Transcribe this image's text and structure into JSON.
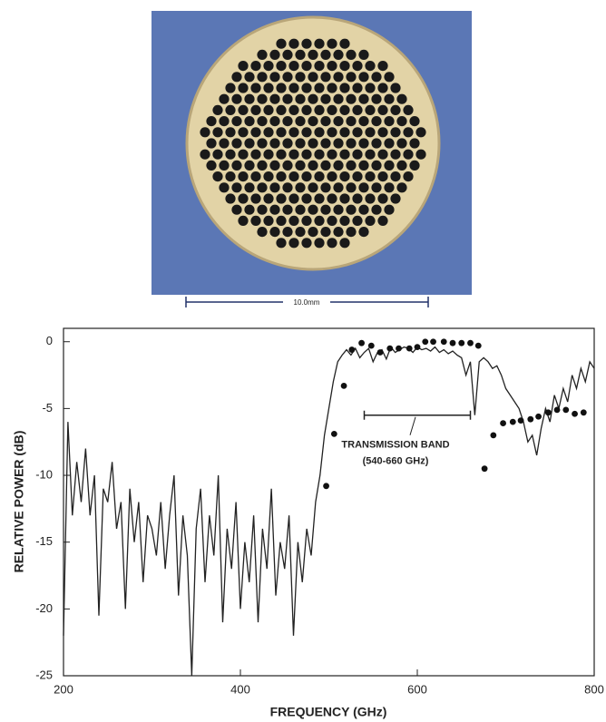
{
  "photo": {
    "scale_label": "10.0mm"
  },
  "chart_data": {
    "type": "line",
    "xlabel": "FREQUENCY  (GHz)",
    "ylabel": "RELATIVE POWER  (dB)",
    "xlim": [
      200,
      800
    ],
    "ylim": [
      -25,
      1
    ],
    "xticks": [
      200,
      400,
      600,
      800
    ],
    "yticks": [
      0,
      -5,
      -10,
      -15,
      -20,
      -25
    ],
    "annotation": {
      "lines": [
        "TRANSMISSION BAND",
        "(540-660 GHz)"
      ],
      "x": [
        540,
        660
      ],
      "y": -5.5
    },
    "series": [
      {
        "type": "line",
        "color": "#222222",
        "x": [
          200,
          205,
          210,
          215,
          220,
          225,
          230,
          235,
          240,
          245,
          250,
          255,
          260,
          265,
          270,
          275,
          280,
          285,
          290,
          295,
          300,
          305,
          310,
          315,
          320,
          325,
          330,
          335,
          340,
          345,
          350,
          355,
          360,
          365,
          370,
          375,
          380,
          385,
          390,
          395,
          400,
          405,
          410,
          415,
          420,
          425,
          430,
          435,
          440,
          445,
          450,
          455,
          460,
          465,
          470,
          475,
          480,
          485,
          490,
          495,
          500,
          505,
          510,
          515,
          520,
          525,
          530,
          535,
          540,
          545,
          550,
          555,
          560,
          565,
          570,
          575,
          580,
          585,
          590,
          595,
          600,
          605,
          610,
          615,
          620,
          625,
          630,
          635,
          640,
          645,
          650,
          655,
          660,
          665,
          670,
          675,
          680,
          685,
          690,
          695,
          700,
          705,
          710,
          715,
          720,
          725,
          730,
          735,
          740,
          745,
          750,
          755,
          760,
          765,
          770,
          775,
          780,
          785,
          790,
          795,
          800
        ],
        "values": [
          -22,
          -6,
          -13,
          -9,
          -12,
          -8,
          -13,
          -10,
          -20.5,
          -11,
          -12,
          -9,
          -14,
          -12,
          -20,
          -11,
          -15,
          -12,
          -18,
          -13,
          -14,
          -16,
          -12,
          -17,
          -13,
          -10,
          -19,
          -13,
          -16,
          -25,
          -14,
          -11,
          -18,
          -13,
          -16,
          -10,
          -21,
          -14,
          -17,
          -12,
          -20,
          -15,
          -18,
          -13,
          -21,
          -14,
          -17,
          -11,
          -19,
          -15,
          -17,
          -13,
          -22,
          -15,
          -18,
          -14,
          -16,
          -12,
          -10,
          -7,
          -5,
          -3,
          -1.5,
          -1,
          -0.6,
          -1,
          -0.5,
          -1.2,
          -0.8,
          -0.5,
          -1.5,
          -0.8,
          -0.6,
          -1.3,
          -0.4,
          -0.8,
          -0.6,
          -0.4,
          -0.5,
          -0.8,
          -0.4,
          -0.6,
          -0.5,
          -0.7,
          -0.4,
          -0.8,
          -0.6,
          -0.9,
          -0.7,
          -1,
          -1.2,
          -2.5,
          -1.5,
          -5.5,
          -1.5,
          -1.2,
          -1.5,
          -2,
          -1.8,
          -2.5,
          -3.5,
          -4,
          -4.5,
          -5,
          -6,
          -7.5,
          -7,
          -8.5,
          -6.5,
          -5,
          -6,
          -4,
          -5,
          -3.5,
          -4.5,
          -2.5,
          -3.5,
          -2,
          -3,
          -1.5,
          -2
        ]
      },
      {
        "type": "scatter",
        "color": "#111111",
        "x": [
          497,
          506,
          517,
          526,
          537,
          548,
          558,
          569,
          579,
          591,
          600,
          609,
          618,
          630,
          640,
          650,
          660,
          669,
          676,
          686,
          697,
          708,
          717,
          728,
          737,
          748,
          758,
          768,
          778,
          788
        ],
        "values": [
          -10.8,
          -6.9,
          -3.3,
          -0.6,
          -0.1,
          -0.3,
          -0.8,
          -0.5,
          -0.5,
          -0.5,
          -0.4,
          0,
          0,
          0,
          -0.1,
          -0.1,
          -0.1,
          -0.3,
          -9.5,
          -7,
          -6.1,
          -6,
          -5.9,
          -5.8,
          -5.6,
          -5.3,
          -5.1,
          -5.1,
          -5.4,
          -5.3
        ]
      }
    ]
  }
}
